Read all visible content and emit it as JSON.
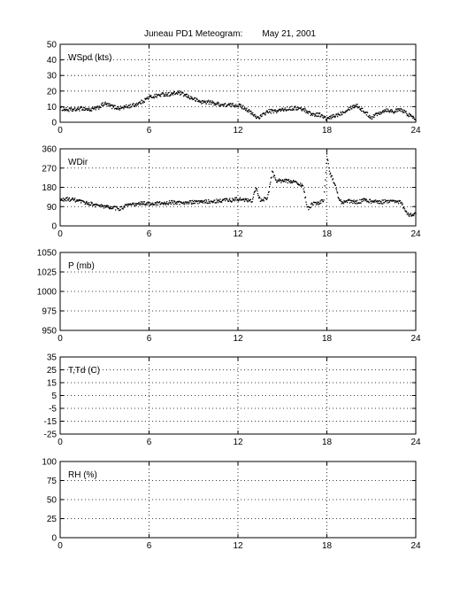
{
  "title": "Juneau PD1 Meteogram:        May 21, 2001",
  "chart_data": [
    {
      "type": "scatter",
      "label": "WSpd (kts)",
      "xlim": [
        0,
        24
      ],
      "xticks": [
        0,
        6,
        12,
        18,
        24
      ],
      "ylim": [
        0,
        50
      ],
      "yticks": [
        0,
        10,
        20,
        30,
        40,
        50
      ],
      "grid": true,
      "series": [
        {
          "x": [
            0,
            0.5,
            1,
            1.5,
            2,
            2.5,
            3,
            3.5,
            4,
            4.5,
            5,
            5.5,
            6,
            6.5,
            7,
            7.5,
            8,
            8.5,
            9,
            9.5,
            10,
            10.5,
            11,
            11.5,
            12,
            12.5,
            13,
            13.3,
            13.6,
            14,
            14.5,
            15,
            15.5,
            16,
            16.5,
            17,
            17.5,
            18,
            18.5,
            19,
            19.5,
            20,
            20.5,
            21,
            21.5,
            22,
            22.5,
            23,
            23.5,
            24
          ],
          "y": [
            9,
            8,
            8,
            9,
            8,
            9,
            12,
            10,
            9,
            10,
            11,
            13,
            16,
            17,
            18,
            18,
            19,
            17,
            15,
            13,
            13,
            12,
            11,
            11,
            11,
            9,
            5,
            3,
            4,
            7,
            7,
            8,
            9,
            9,
            8,
            5,
            5,
            2,
            4,
            6,
            9,
            11,
            7,
            3,
            6,
            8,
            7,
            8,
            5,
            2
          ]
        }
      ]
    },
    {
      "type": "scatter",
      "label": "WDir",
      "xlim": [
        0,
        24
      ],
      "xticks": [
        0,
        6,
        12,
        18,
        24
      ],
      "ylim": [
        0,
        360
      ],
      "yticks": [
        0,
        90,
        180,
        270,
        360
      ],
      "grid": true,
      "series": [
        {
          "x": [
            0,
            0.5,
            1,
            1.5,
            2,
            2.5,
            3,
            3.5,
            4,
            4.5,
            5,
            5.5,
            6,
            6.5,
            7,
            7.5,
            8,
            8.5,
            9,
            9.5,
            10,
            10.5,
            11,
            11.5,
            12,
            12.5,
            13,
            13.2,
            13.5,
            14,
            14.3,
            14.6,
            15,
            15.5,
            16,
            16.4,
            16.7,
            17,
            17.5,
            17.8,
            18,
            18.2,
            18.5,
            18.8,
            19,
            19.5,
            20,
            20.5,
            21,
            21.5,
            22,
            22.5,
            23,
            23.3,
            23.6,
            24
          ],
          "y": [
            120,
            125,
            120,
            110,
            105,
            95,
            90,
            85,
            80,
            95,
            100,
            105,
            105,
            105,
            105,
            110,
            108,
            110,
            110,
            110,
            115,
            115,
            120,
            120,
            125,
            120,
            120,
            180,
            120,
            130,
            250,
            210,
            210,
            210,
            205,
            180,
            80,
            100,
            110,
            120,
            330,
            250,
            200,
            130,
            110,
            115,
            110,
            120,
            115,
            110,
            115,
            120,
            110,
            70,
            50,
            60
          ]
        }
      ]
    },
    {
      "type": "scatter",
      "label": "P (mb)",
      "xlim": [
        0,
        24
      ],
      "xticks": [
        0,
        6,
        12,
        18,
        24
      ],
      "ylim": [
        950,
        1050
      ],
      "yticks": [
        950,
        975,
        1000,
        1025,
        1050
      ],
      "grid": true,
      "series": []
    },
    {
      "type": "scatter",
      "label": "T,Td (C)",
      "xlim": [
        0,
        24
      ],
      "xticks": [
        0,
        6,
        12,
        18,
        24
      ],
      "ylim": [
        -25,
        35
      ],
      "yticks": [
        -25,
        -15,
        -5,
        5,
        15,
        25,
        35
      ],
      "grid": true,
      "series": []
    },
    {
      "type": "scatter",
      "label": "RH (%)",
      "xlim": [
        0,
        24
      ],
      "xticks": [
        0,
        6,
        12,
        18,
        24
      ],
      "ylim": [
        0,
        100
      ],
      "yticks": [
        0,
        25,
        50,
        75,
        100
      ],
      "grid": true,
      "series": []
    }
  ]
}
